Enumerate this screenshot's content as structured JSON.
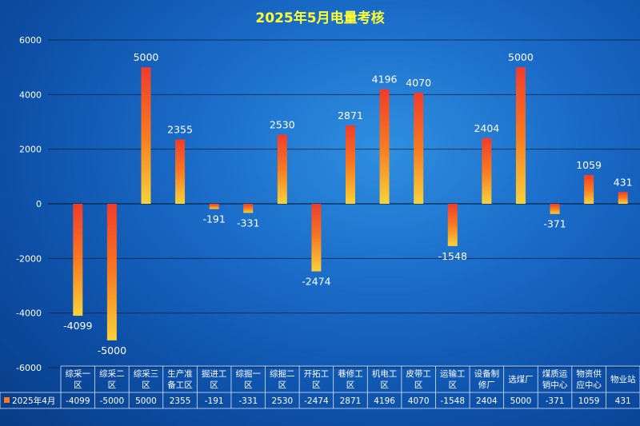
{
  "chart_data": {
    "type": "bar",
    "title": "2025年5月电量考核",
    "categories": [
      [
        "综采一",
        "区"
      ],
      [
        "综采二",
        "区"
      ],
      [
        "综采三",
        "区"
      ],
      [
        "生产准",
        "备工区"
      ],
      [
        "掘进工",
        "区"
      ],
      [
        "综掘一",
        "区"
      ],
      [
        "综掘二",
        "区"
      ],
      [
        "开拓工",
        "区"
      ],
      [
        "巷修工",
        "区"
      ],
      [
        "机电工",
        "区"
      ],
      [
        "皮带工",
        "区"
      ],
      [
        "运输工",
        "区"
      ],
      [
        "设备制",
        "修厂"
      ],
      [
        "选煤厂"
      ],
      [
        "煤质运",
        "销中心"
      ],
      [
        "物资供",
        "应中心"
      ],
      [
        "物业站"
      ]
    ],
    "series": [
      {
        "name": "2025年4月",
        "values": [
          -4099,
          -5000,
          5000,
          2355,
          -191,
          -331,
          2530,
          -2474,
          2871,
          4196,
          4070,
          -1548,
          2404,
          5000,
          -371,
          1059,
          431
        ]
      }
    ],
    "ylim": [
      -6000,
      6000
    ],
    "yticks": [
      -6000,
      -4000,
      -2000,
      0,
      2000,
      4000,
      6000
    ],
    "grid": true,
    "legend": "bottom-left data table",
    "colors": {
      "bar_top": "#f03c2c",
      "bar_mid": "#f87a20",
      "bar_bottom": "#f8d23a",
      "title": "#ffff33"
    }
  }
}
